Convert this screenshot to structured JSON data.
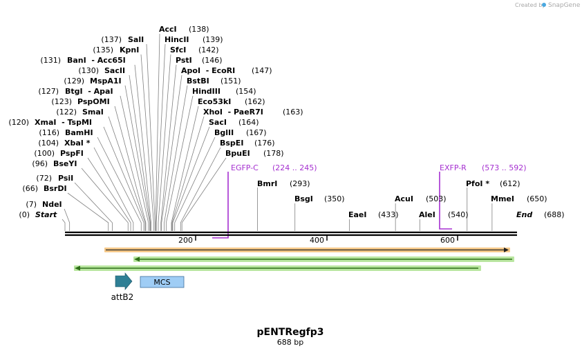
{
  "watermark": {
    "prefix": "Created by",
    "brand": "SnapGene"
  },
  "map": {
    "title": "pENTRegfp3",
    "length_label": "688 bp",
    "length_bp": 688,
    "ruler_ticks": [
      {
        "label": "200",
        "bp": 200
      },
      {
        "label": "400",
        "bp": 400
      },
      {
        "label": "600",
        "bp": 600
      }
    ]
  },
  "left_sites": [
    {
      "name": "AccI",
      "pos": "(138)",
      "bp": 138
    },
    {
      "name": "HincII",
      "pos": "(139)",
      "bp": 139
    },
    {
      "name": "SfcI",
      "pos": "(142)",
      "bp": 142
    },
    {
      "name": "PstI",
      "pos": "(146)",
      "bp": 146
    },
    {
      "name": "ApoI  - EcoRI",
      "pos": "(147)",
      "bp": 147
    },
    {
      "name": "BstBI",
      "pos": "(151)",
      "bp": 151
    },
    {
      "name": "HindIII",
      "pos": "(154)",
      "bp": 154
    },
    {
      "name": "Eco53kI",
      "pos": "(162)",
      "bp": 162
    },
    {
      "name": "XhoI  - PaeR7I",
      "pos": "(163)",
      "bp": 163
    },
    {
      "name": "SacI",
      "pos": "(164)",
      "bp": 164
    },
    {
      "name": "BglII",
      "pos": "(167)",
      "bp": 167
    },
    {
      "name": "BspEI",
      "pos": "(176)",
      "bp": 176
    },
    {
      "name": "BpuEI",
      "pos": "(178)",
      "bp": 178
    }
  ],
  "right_sites_col1": [
    {
      "name": "SalI",
      "pos": "(137)",
      "bp": 137
    },
    {
      "name": "KpnI",
      "pos": "(135)",
      "bp": 135
    },
    {
      "name": "BanI  - Acc65I",
      "pos": "(131)",
      "bp": 131
    },
    {
      "name": "SacII",
      "pos": "(130)",
      "bp": 130
    },
    {
      "name": "MspA1I",
      "pos": "(129)",
      "bp": 129
    },
    {
      "name": "BtgI  - ApaI",
      "pos": "(127)",
      "bp": 127
    },
    {
      "name": "PspOMI",
      "pos": "(123)",
      "bp": 123
    },
    {
      "name": "SmaI",
      "pos": "(122)",
      "bp": 122
    },
    {
      "name": "XmaI  - TspMI",
      "pos": "(120)",
      "bp": 120
    },
    {
      "name": "BamHI",
      "pos": "(116)",
      "bp": 116
    },
    {
      "name": "XbaI *",
      "pos": "(104)",
      "bp": 104
    },
    {
      "name": "PspFI",
      "pos": "(100)",
      "bp": 100
    },
    {
      "name": "BseYI",
      "pos": "(96)",
      "bp": 96
    }
  ],
  "low_sites": [
    {
      "name": "PsiI",
      "pos": "(72)",
      "bp": 72
    },
    {
      "name": "BsrDI",
      "pos": "(66)",
      "bp": 66
    },
    {
      "name": "NdeI",
      "pos": "(7)",
      "bp": 7
    },
    {
      "name": "Start",
      "pos": "(0)",
      "bp": 0
    },
    {
      "name": "BmrI",
      "pos": "(293)",
      "bp": 293
    },
    {
      "name": "BsgI",
      "pos": "(350)",
      "bp": 350
    },
    {
      "name": "EaeI",
      "pos": "(433)",
      "bp": 433
    },
    {
      "name": "AcuI",
      "pos": "(503)",
      "bp": 503
    },
    {
      "name": "AleI",
      "pos": "(540)",
      "bp": 540
    },
    {
      "name": "PfoI *",
      "pos": "(612)",
      "bp": 612
    },
    {
      "name": "MmeI",
      "pos": "(650)",
      "bp": 650
    },
    {
      "name": "End",
      "pos": "(688)",
      "bp": 688
    }
  ],
  "primers": [
    {
      "name": "EGFP-C",
      "range": "(224 .. 245)",
      "start": 224,
      "end": 245
    },
    {
      "name": "EXFP-R",
      "range": "(573 .. 592)",
      "start": 573,
      "end": 592
    }
  ],
  "features": {
    "attb2": "attB2",
    "mcs": "MCS"
  },
  "colors": {
    "primer": "#a52fd0",
    "orf_orange": "#f0a03c",
    "orf_green": "#48a528",
    "attb2": "#2f7f95",
    "mcs": "#9fcdf5"
  }
}
